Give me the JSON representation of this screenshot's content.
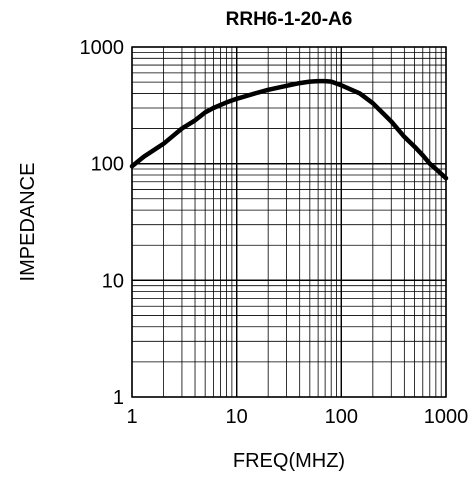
{
  "chart_data": {
    "type": "line",
    "title": "RRH6-1-20-A6",
    "xlabel": "FREQ(MHZ)",
    "ylabel": "IMPEDANCE",
    "x_scale": "log",
    "y_scale": "log",
    "xlim": [
      1,
      1000
    ],
    "ylim": [
      1,
      1000
    ],
    "x_ticks": [
      1,
      10,
      100,
      1000
    ],
    "x_tick_labels": [
      "1",
      "10",
      "100",
      "1000"
    ],
    "y_ticks": [
      1,
      10,
      100,
      1000
    ],
    "y_tick_labels": [
      "1",
      "10",
      "100",
      "1000"
    ],
    "grid": true,
    "series": [
      {
        "color": "#000000",
        "x": [
          1,
          1.3,
          1.6,
          2,
          2.5,
          3,
          4,
          5,
          6,
          8,
          10,
          15,
          20,
          30,
          40,
          50,
          60,
          70,
          80,
          100,
          150,
          200,
          300,
          400,
          500,
          600,
          700,
          800,
          1000
        ],
        "y": [
          95,
          115,
          130,
          148,
          175,
          200,
          235,
          275,
          300,
          335,
          360,
          400,
          430,
          465,
          490,
          505,
          510,
          510,
          505,
          470,
          400,
          330,
          230,
          170,
          140,
          118,
          100,
          90,
          75
        ]
      }
    ]
  }
}
